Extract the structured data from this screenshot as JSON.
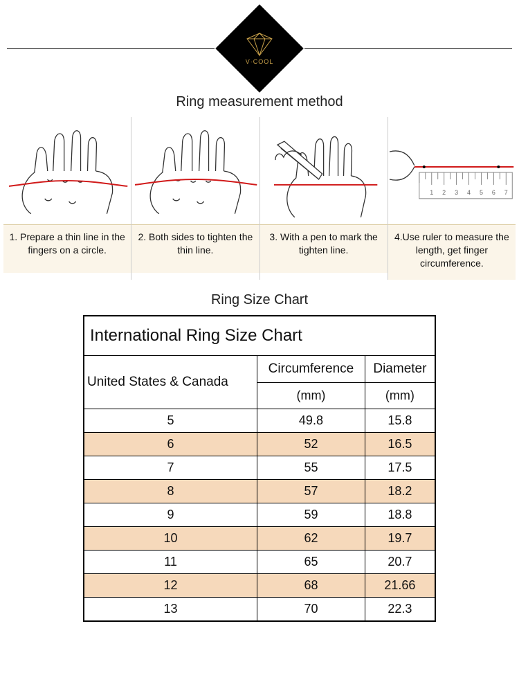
{
  "logo": {
    "caption": "V·COOL",
    "line_color": "#000000",
    "diamond_bg": "#000000",
    "accent_color": "#c9a14a"
  },
  "method": {
    "title": "Ring measurement method",
    "steps": [
      {
        "caption": "1.  Prepare a thin line in the fingers on a circle."
      },
      {
        "caption": "2.  Both sides to tighten the thin line."
      },
      {
        "caption": "3. With a pen to mark the tighten line."
      },
      {
        "caption": "4.Use ruler to measure the length, get finger circumference."
      }
    ],
    "illustration": {
      "hand_stroke": "#333333",
      "thread_color": "#d11a1a",
      "ruler_stroke": "#888888"
    }
  },
  "chart": {
    "title": "Ring Size Chart",
    "table_title": "International Ring Size Chart",
    "col1_label": "United States & Canada",
    "col2_label": "Circumference",
    "col3_label": "Diameter",
    "unit": "(mm)",
    "highlight_color": "#f6d9bb",
    "rows": [
      {
        "size": "5",
        "circ": "49.8",
        "dia": "15.8",
        "hl": false
      },
      {
        "size": "6",
        "circ": "52",
        "dia": "16.5",
        "hl": true
      },
      {
        "size": "7",
        "circ": "55",
        "dia": "17.5",
        "hl": false
      },
      {
        "size": "8",
        "circ": "57",
        "dia": "18.2",
        "hl": true
      },
      {
        "size": "9",
        "circ": "59",
        "dia": "18.8",
        "hl": false
      },
      {
        "size": "10",
        "circ": "62",
        "dia": "19.7",
        "hl": true
      },
      {
        "size": "11",
        "circ": "65",
        "dia": "20.7",
        "hl": false
      },
      {
        "size": "12",
        "circ": "68",
        "dia": "21.66",
        "hl": true
      },
      {
        "size": "13",
        "circ": "70",
        "dia": "22.3",
        "hl": false
      }
    ]
  }
}
